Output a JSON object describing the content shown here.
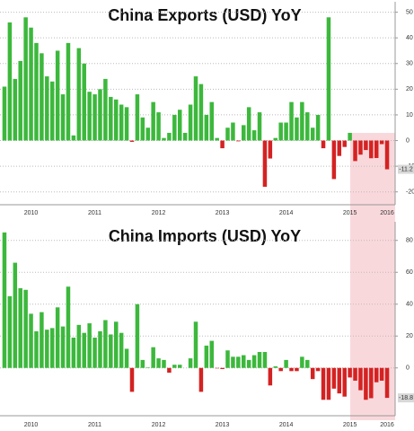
{
  "chart_data": [
    {
      "type": "bar",
      "title": "China Exports (USD) YoY",
      "categories": [
        null,
        null,
        null,
        null,
        null,
        "2010",
        null,
        null,
        null,
        null,
        null,
        null,
        null,
        null,
        null,
        null,
        null,
        "2011",
        null,
        null,
        null,
        null,
        null,
        null,
        null,
        null,
        null,
        null,
        null,
        "2012",
        null,
        null,
        null,
        null,
        null,
        null,
        null,
        null,
        null,
        null,
        null,
        "2013",
        null,
        null,
        null,
        null,
        null,
        null,
        null,
        null,
        null,
        null,
        null,
        "2014",
        null,
        null,
        null,
        null,
        null,
        null,
        null,
        null,
        null,
        null,
        null,
        "2015",
        null,
        null,
        null,
        null,
        null,
        null,
        "2016"
      ],
      "values": [
        21,
        46,
        24,
        31,
        48,
        44,
        38,
        34,
        25,
        23,
        35,
        18,
        38,
        2,
        36,
        30,
        19,
        18,
        20,
        24,
        17,
        16,
        14,
        13,
        -0.5,
        18,
        9,
        5,
        15,
        11,
        1,
        3,
        10,
        12,
        3,
        14,
        25,
        22,
        10,
        15,
        1,
        -3,
        5,
        7,
        -0.3,
        6,
        13,
        4,
        11,
        -18,
        -7,
        1,
        7,
        7,
        15,
        9,
        15,
        11,
        5,
        10,
        -3,
        48,
        -15,
        -6,
        -2.5,
        3,
        -8,
        -5.5,
        -3.7,
        -6.9,
        -6.8,
        -1.4,
        -11.2
      ],
      "color": "#3cb83c",
      "negative_color": "#d42222",
      "ylim": [
        -25,
        53
      ],
      "yticks": [
        -20,
        -10,
        0,
        10,
        20,
        30,
        40,
        50
      ],
      "grid": true
    },
    {
      "type": "bar",
      "title": "China Imports (USD) YoY",
      "categories": [
        null,
        null,
        null,
        null,
        null,
        "2010",
        null,
        null,
        null,
        null,
        null,
        null,
        null,
        null,
        null,
        null,
        null,
        "2011",
        null,
        null,
        null,
        null,
        null,
        null,
        null,
        null,
        null,
        null,
        null,
        "2012",
        null,
        null,
        null,
        null,
        null,
        null,
        null,
        null,
        null,
        null,
        null,
        "2013",
        null,
        null,
        null,
        null,
        null,
        null,
        null,
        null,
        null,
        null,
        null,
        "2014",
        null,
        null,
        null,
        null,
        null,
        null,
        null,
        null,
        null,
        null,
        null,
        "2015",
        null,
        null,
        null,
        null,
        null,
        null,
        "2016"
      ],
      "values": [
        85,
        45,
        66,
        50,
        49,
        34,
        23,
        35,
        24,
        25,
        38,
        26,
        51,
        19,
        27,
        22,
        28,
        19,
        23,
        30,
        21,
        29,
        22,
        12,
        -15,
        40,
        5,
        0.3,
        13,
        6,
        5,
        -3,
        2,
        2,
        0,
        6,
        29,
        -15,
        14,
        17,
        -0.3,
        -0.7,
        11,
        7,
        7,
        8,
        5,
        8,
        10,
        10,
        -11,
        1,
        -2,
        5,
        -2,
        -2,
        7,
        5,
        -7,
        -2,
        -20,
        -20,
        -13,
        -16,
        -18,
        -6,
        -8,
        -14,
        -20,
        -19,
        -9,
        -8,
        -18.8
      ],
      "color": "#3cb83c",
      "negative_color": "#d42222",
      "ylim": [
        -30,
        90
      ],
      "yticks": [
        0,
        20,
        40,
        60,
        80
      ],
      "grid": true
    }
  ]
}
